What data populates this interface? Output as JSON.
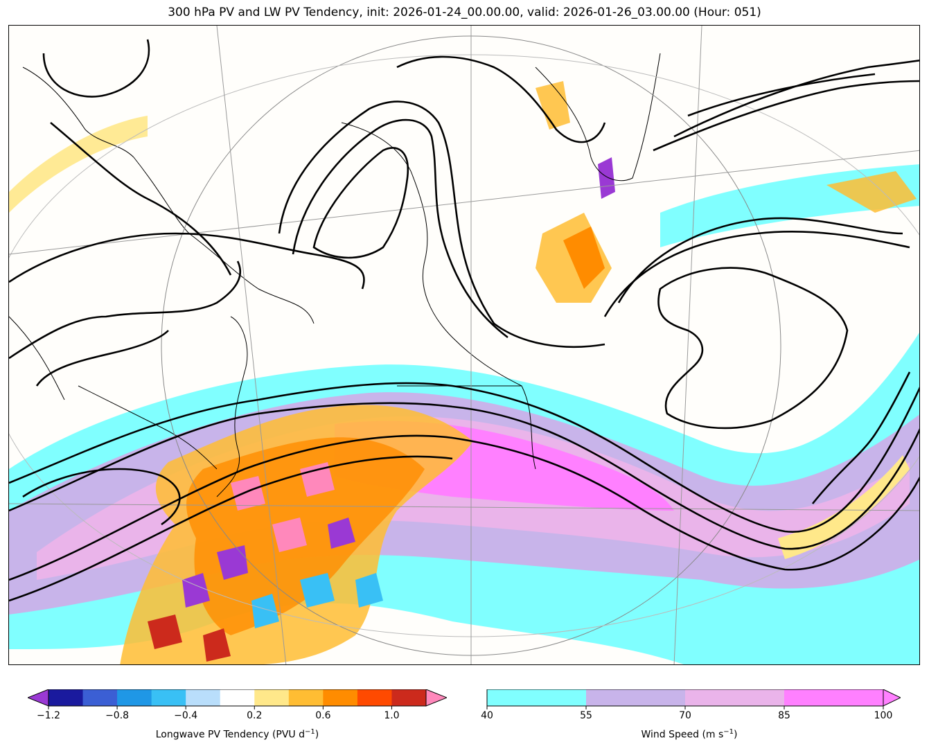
{
  "figure": {
    "title": "300 hPa PV and LW PV Tendency, init: 2026-01-24_00.00.00, valid: 2026-01-26_03.00.00 (Hour: 051)"
  },
  "colorbars": {
    "pv_tendency": {
      "label_main": "Longwave PV Tendency (PVU d",
      "label_sup": "−1",
      "label_end": ")",
      "min": -1.3,
      "max": 1.3,
      "ticks": [
        "−1.2",
        "−0.8",
        "−0.4",
        "0.2",
        "0.6",
        "1.0"
      ],
      "colors": [
        "#1a1a9e",
        "#3b5fd4",
        "#1f97e6",
        "#39c0f5",
        "#b9defb",
        "#ffffff",
        "#ffe88a",
        "#ffbd33",
        "#ff8c00",
        "#ff4a00",
        "#cc2a1c"
      ],
      "extend_low_color": "#9a39d4",
      "extend_high_color": "#ff88bb"
    },
    "wind_speed": {
      "label_main": "Wind Speed (m s",
      "label_sup": "−1",
      "label_end": ")",
      "ticks": [
        "40",
        "55",
        "70",
        "85",
        "100"
      ],
      "colors": [
        "#80ffff",
        "#c8b4ea",
        "#eab4ea",
        "#ff80ff"
      ],
      "extend_high_color": "#ff80ff"
    }
  }
}
